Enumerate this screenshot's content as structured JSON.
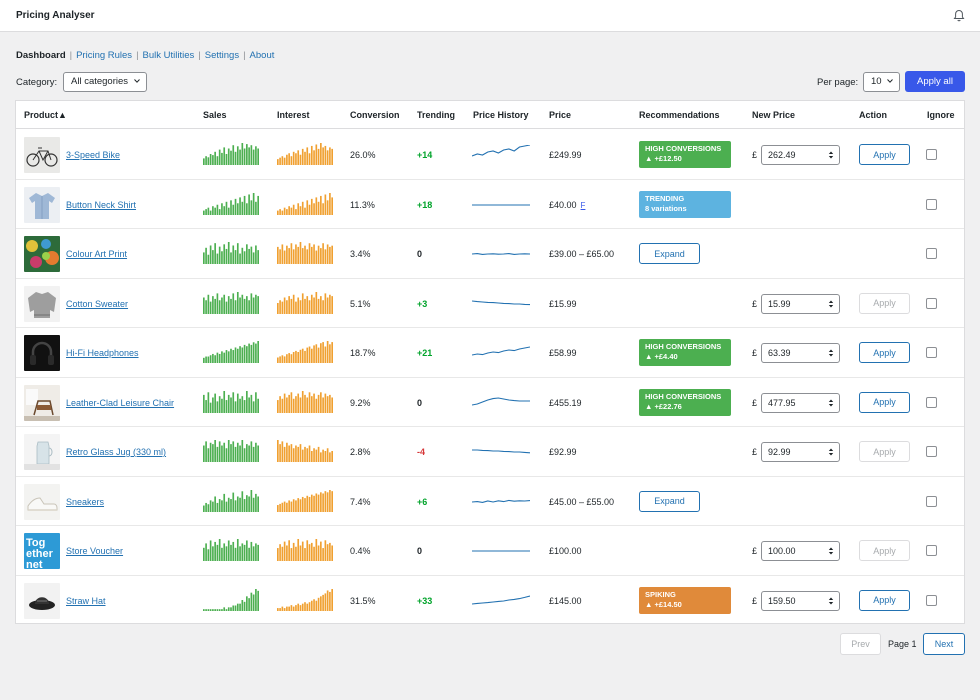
{
  "app": {
    "title": "Pricing Analyser"
  },
  "nav": {
    "items": [
      {
        "label": "Dashboard",
        "current": true
      },
      {
        "label": "Pricing Rules",
        "current": false
      },
      {
        "label": "Bulk Utilities",
        "current": false
      },
      {
        "label": "Settings",
        "current": false
      },
      {
        "label": "About",
        "current": false
      }
    ]
  },
  "filters": {
    "category_label": "Category:",
    "category_value": "All categories",
    "per_page_label": "Per page:",
    "per_page_value": "10",
    "apply_all_label": "Apply all"
  },
  "table": {
    "headers": {
      "product": "Product▲",
      "sales": "Sales",
      "interest": "Interest",
      "conversion": "Conversion",
      "trending": "Trending",
      "price_history": "Price History",
      "price": "Price",
      "recommendations": "Recommendations",
      "new_price": "New Price",
      "action": "Action",
      "ignore": "Ignore"
    },
    "rows": [
      {
        "name": "3-Speed Bike",
        "thumb": "bike",
        "sales": [
          6,
          8,
          7,
          10,
          9,
          12,
          8,
          14,
          11,
          16,
          10,
          15,
          13,
          18,
          12,
          17,
          14,
          20,
          15,
          19,
          16,
          18,
          14,
          17,
          15
        ],
        "interest": [
          4,
          5,
          6,
          5,
          7,
          8,
          6,
          9,
          8,
          10,
          7,
          11,
          9,
          12,
          8,
          13,
          10,
          14,
          11,
          15,
          12,
          13,
          10,
          12,
          11
        ],
        "conversion": "26.0%",
        "trending": "+14",
        "trend_dir": "up",
        "spark": [
          0.45,
          0.55,
          0.5,
          0.65,
          0.7,
          0.6,
          0.75,
          0.8,
          0.7,
          0.9,
          0.95,
          1.0
        ],
        "price": "£249.99",
        "price_flag": "",
        "recommendation": {
          "type": "high",
          "line1": "HIGH CONVERSIONS",
          "line2": "▲ +£12.50"
        },
        "new_price": "262.49",
        "has_input": true,
        "expand": false,
        "action": "Apply",
        "action_enabled": true
      },
      {
        "name": "Button Neck Shirt",
        "thumb": "shirt",
        "sales": [
          3,
          4,
          5,
          3,
          6,
          5,
          7,
          4,
          8,
          6,
          9,
          5,
          10,
          7,
          11,
          8,
          12,
          9,
          13,
          8,
          14,
          10,
          15,
          9,
          13
        ],
        "interest": [
          3,
          4,
          3,
          5,
          4,
          6,
          5,
          7,
          4,
          8,
          6,
          9,
          5,
          10,
          7,
          11,
          8,
          12,
          9,
          13,
          8,
          14,
          10,
          15,
          12
        ],
        "conversion": "11.3%",
        "trending": "+18",
        "trend_dir": "up",
        "spark": [
          0.5,
          0.5,
          0.5,
          0.5,
          0.5,
          0.5,
          0.5,
          0.5,
          0.5,
          0.5,
          0.5,
          0.5
        ],
        "price": "£40.00",
        "price_flag": "F",
        "recommendation": {
          "type": "trending",
          "line1": "TRENDING",
          "line2": "8 variations"
        },
        "new_price": "",
        "has_input": false,
        "expand": false,
        "action": "",
        "action_enabled": false
      },
      {
        "name": "Colour Art Print",
        "thumb": "art",
        "sales": [
          10,
          14,
          8,
          16,
          12,
          18,
          9,
          15,
          11,
          17,
          13,
          19,
          10,
          16,
          12,
          18,
          9,
          14,
          11,
          17,
          13,
          15,
          10,
          16,
          12
        ],
        "interest": [
          14,
          12,
          16,
          11,
          15,
          13,
          17,
          12,
          16,
          14,
          18,
          13,
          15,
          12,
          17,
          14,
          16,
          11,
          15,
          13,
          17,
          12,
          16,
          14,
          15
        ],
        "conversion": "3.4%",
        "trending": "0",
        "trend_dir": "flat",
        "spark": [
          0.5,
          0.52,
          0.48,
          0.5,
          0.51,
          0.49,
          0.5,
          0.52,
          0.48,
          0.5,
          0.51,
          0.5
        ],
        "price": "£39.00 – £65.00",
        "price_flag": "",
        "recommendation": null,
        "new_price": "",
        "has_input": false,
        "expand": true,
        "expand_label": "Expand",
        "action": "",
        "action_enabled": false
      },
      {
        "name": "Cotton Sweater",
        "thumb": "sweater",
        "sales": [
          12,
          10,
          14,
          9,
          13,
          11,
          15,
          10,
          12,
          14,
          9,
          13,
          11,
          15,
          10,
          16,
          12,
          14,
          11,
          13,
          10,
          15,
          12,
          14,
          13
        ],
        "interest": [
          8,
          10,
          9,
          12,
          10,
          13,
          11,
          14,
          9,
          12,
          10,
          15,
          11,
          13,
          10,
          14,
          12,
          16,
          11,
          13,
          10,
          15,
          12,
          14,
          13
        ],
        "conversion": "5.1%",
        "trending": "+3",
        "trend_dir": "up",
        "spark": [
          0.65,
          0.62,
          0.6,
          0.58,
          0.57,
          0.55,
          0.53,
          0.52,
          0.5,
          0.5,
          0.48,
          0.47
        ],
        "price": "£15.99",
        "price_flag": "",
        "recommendation": null,
        "new_price": "15.99",
        "has_input": true,
        "expand": false,
        "action": "Apply",
        "action_enabled": false
      },
      {
        "name": "Hi-Fi Headphones",
        "thumb": "headphones",
        "sales": [
          4,
          5,
          5,
          6,
          7,
          6,
          8,
          7,
          9,
          8,
          10,
          9,
          11,
          10,
          12,
          11,
          13,
          12,
          14,
          13,
          15,
          14,
          16,
          15,
          17
        ],
        "interest": [
          5,
          6,
          7,
          6,
          8,
          9,
          8,
          10,
          11,
          10,
          12,
          13,
          11,
          14,
          15,
          13,
          16,
          17,
          14,
          18,
          19,
          15,
          20,
          17,
          19
        ],
        "conversion": "18.7%",
        "trending": "+21",
        "trend_dir": "up",
        "spark": [
          0.4,
          0.45,
          0.42,
          0.5,
          0.55,
          0.52,
          0.6,
          0.65,
          0.62,
          0.7,
          0.75,
          0.8
        ],
        "price": "£58.99",
        "price_flag": "",
        "recommendation": {
          "type": "high",
          "line1": "HIGH CONVERSIONS",
          "line2": "▲ +£4.40"
        },
        "new_price": "63.39",
        "has_input": true,
        "expand": false,
        "action": "Apply",
        "action_enabled": true
      },
      {
        "name": "Leather-Clad Leisure Chair",
        "thumb": "chair",
        "sales": [
          14,
          10,
          16,
          8,
          12,
          15,
          9,
          13,
          11,
          17,
          10,
          14,
          12,
          16,
          9,
          15,
          11,
          13,
          10,
          17,
          12,
          14,
          9,
          16,
          11
        ],
        "interest": [
          10,
          13,
          11,
          15,
          12,
          14,
          16,
          11,
          13,
          15,
          12,
          17,
          14,
          12,
          16,
          13,
          15,
          11,
          14,
          16,
          12,
          15,
          13,
          14,
          12
        ],
        "conversion": "9.2%",
        "trending": "0",
        "trend_dir": "flat",
        "spark": [
          0.4,
          0.45,
          0.55,
          0.65,
          0.72,
          0.75,
          0.7,
          0.65,
          0.62,
          0.6,
          0.6,
          0.6
        ],
        "price": "£455.19",
        "price_flag": "",
        "recommendation": {
          "type": "high",
          "line1": "HIGH CONVERSIONS",
          "line2": "▲ +£22.76"
        },
        "new_price": "477.95",
        "has_input": true,
        "expand": false,
        "action": "Apply",
        "action_enabled": true
      },
      {
        "name": "Retro Glass Jug (330 ml)",
        "thumb": "jug",
        "sales": [
          12,
          15,
          10,
          14,
          13,
          16,
          11,
          15,
          12,
          14,
          10,
          16,
          13,
          15,
          11,
          14,
          12,
          16,
          10,
          13,
          12,
          15,
          11,
          14,
          12
        ],
        "interest": [
          16,
          13,
          15,
          11,
          14,
          12,
          13,
          10,
          12,
          11,
          13,
          9,
          11,
          10,
          12,
          8,
          10,
          9,
          11,
          7,
          9,
          8,
          10,
          7,
          8
        ],
        "conversion": "2.8%",
        "trending": "-4",
        "trend_dir": "down",
        "spark": [
          0.6,
          0.6,
          0.58,
          0.57,
          0.55,
          0.55,
          0.53,
          0.52,
          0.5,
          0.5,
          0.48,
          0.46
        ],
        "price": "£92.99",
        "price_flag": "",
        "recommendation": null,
        "new_price": "92.99",
        "has_input": true,
        "expand": false,
        "action": "Apply",
        "action_enabled": false
      },
      {
        "name": "Sneakers",
        "thumb": "sneakers",
        "sales": [
          5,
          7,
          6,
          9,
          8,
          12,
          7,
          10,
          9,
          14,
          8,
          11,
          10,
          15,
          9,
          12,
          11,
          16,
          10,
          13,
          12,
          17,
          11,
          14,
          12
        ],
        "interest": [
          6,
          7,
          8,
          9,
          8,
          10,
          9,
          11,
          10,
          12,
          11,
          13,
          12,
          14,
          13,
          15,
          14,
          16,
          15,
          17,
          16,
          18,
          17,
          19,
          18
        ],
        "conversion": "7.4%",
        "trending": "+6",
        "trend_dir": "up",
        "spark": [
          0.5,
          0.52,
          0.48,
          0.55,
          0.5,
          0.56,
          0.52,
          0.58,
          0.54,
          0.56,
          0.55,
          0.57
        ],
        "price": "£45.00 – £55.00",
        "price_flag": "",
        "recommendation": null,
        "new_price": "",
        "has_input": false,
        "expand": true,
        "expand_label": "Expand",
        "action": "",
        "action_enabled": false
      },
      {
        "name": "Store Voucher",
        "thumb": "voucher",
        "sales": [
          9,
          12,
          8,
          14,
          10,
          13,
          11,
          15,
          9,
          12,
          10,
          14,
          11,
          13,
          9,
          15,
          10,
          12,
          11,
          14,
          9,
          13,
          10,
          12,
          11
        ],
        "interest": [
          10,
          13,
          11,
          15,
          12,
          16,
          10,
          14,
          11,
          17,
          12,
          15,
          10,
          16,
          13,
          14,
          11,
          17,
          12,
          15,
          10,
          16,
          13,
          14,
          12
        ],
        "conversion": "0.4%",
        "trending": "0",
        "trend_dir": "flat",
        "spark": [
          0.5,
          0.5,
          0.5,
          0.5,
          0.5,
          0.5,
          0.5,
          0.5,
          0.5,
          0.5,
          0.5,
          0.5
        ],
        "price": "£100.00",
        "price_flag": "",
        "recommendation": null,
        "new_price": "100.00",
        "has_input": true,
        "expand": false,
        "action": "Apply",
        "action_enabled": false
      },
      {
        "name": "Straw Hat",
        "thumb": "hat",
        "sales": [
          1,
          1,
          1,
          1,
          1,
          1,
          1,
          1,
          1,
          2,
          1,
          2,
          2,
          3,
          3,
          4,
          4,
          6,
          5,
          8,
          7,
          10,
          9,
          12,
          11
        ],
        "interest": [
          2,
          2,
          3,
          2,
          3,
          3,
          4,
          3,
          4,
          5,
          4,
          5,
          6,
          5,
          6,
          7,
          8,
          7,
          9,
          10,
          11,
          12,
          14,
          13,
          15
        ],
        "conversion": "31.5%",
        "trending": "+33",
        "trend_dir": "up",
        "spark": [
          0.35,
          0.38,
          0.4,
          0.42,
          0.45,
          0.48,
          0.5,
          0.55,
          0.58,
          0.62,
          0.68,
          0.75
        ],
        "price": "£145.00",
        "price_flag": "",
        "recommendation": {
          "type": "spiking",
          "line1": "SPIKING",
          "line2": "▲ +£14.50"
        },
        "new_price": "159.50",
        "has_input": true,
        "expand": false,
        "action": "Apply",
        "action_enabled": true
      }
    ]
  },
  "pagination": {
    "prev_label": "Prev",
    "page_label": "Page 1",
    "next_label": "Next"
  },
  "colors": {
    "accent": "#3858e9",
    "link": "#2271b1",
    "sales_bar": "#4caf50",
    "interest_bar": "#f0a030",
    "spark_line": "#2271b1",
    "badge_high": "#4caf50",
    "badge_trending": "#5db3e0",
    "badge_spiking": "#e08a3a",
    "trend_up": "#00a32a",
    "trend_down": "#d63638"
  }
}
